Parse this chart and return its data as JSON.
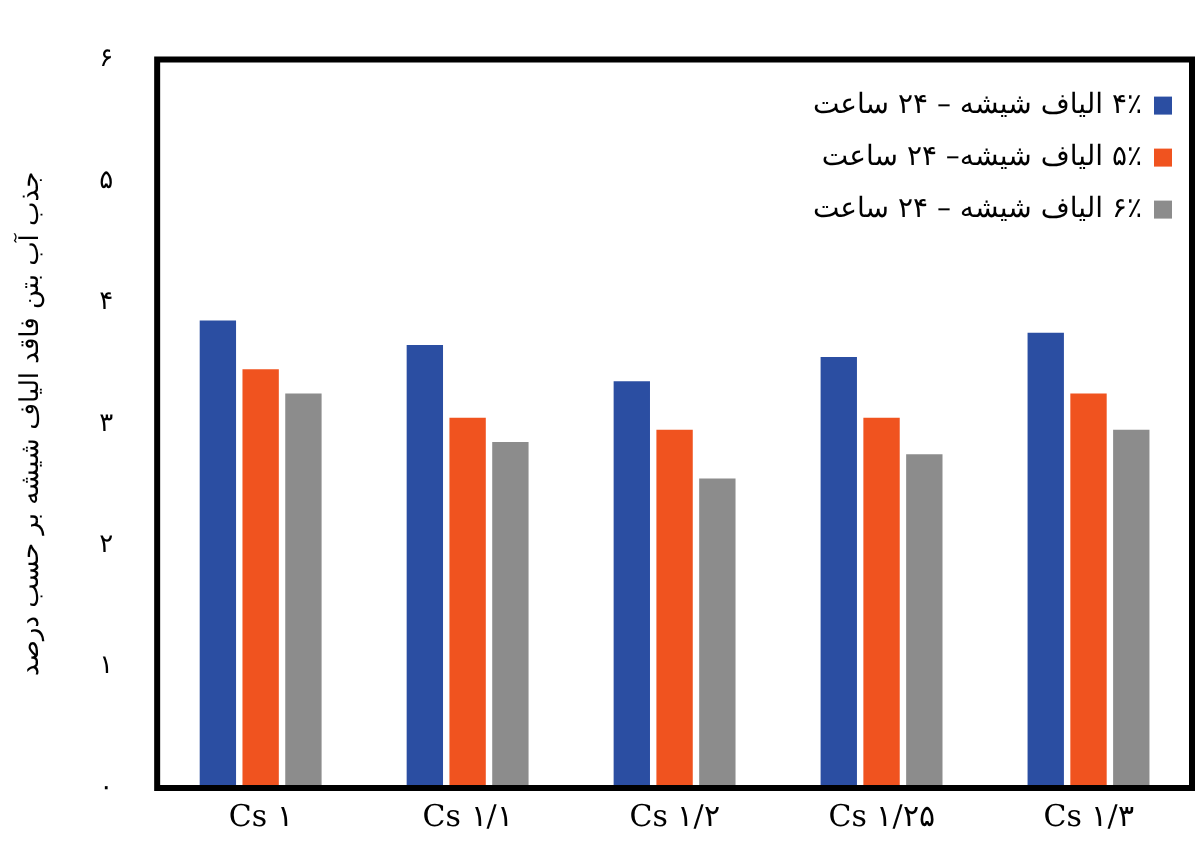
{
  "chart_data": {
    "type": "bar",
    "ylabel": "جذب آب بتن فاقد الیاف شیشه بر حسب درصد",
    "categories": [
      "Cs ۱",
      "Cs ۱/۱",
      "Cs ۱/۲",
      "Cs ۱/۲۵",
      "Cs ۱/۳"
    ],
    "series": [
      {
        "name": "۴٪ الیاف شیشه – ۲۴ ساعت",
        "color": "#2b4ea2",
        "values": [
          3.85,
          3.65,
          3.35,
          3.55,
          3.75
        ]
      },
      {
        "name": "۵٪ الیاف شیشه– ۲۴ ساعت",
        "color": "#f0531f",
        "values": [
          3.45,
          3.05,
          2.95,
          3.05,
          3.25
        ]
      },
      {
        "name": "۶٪ الیاف شیشه – ۲۴ ساعت",
        "color": "#8c8c8c",
        "values": [
          3.25,
          2.85,
          2.55,
          2.75,
          2.95
        ]
      }
    ],
    "ylim": [
      0,
      6
    ],
    "yticks": [
      {
        "value": 0,
        "label": "٠"
      },
      {
        "value": 1,
        "label": "۱"
      },
      {
        "value": 2,
        "label": "۲"
      },
      {
        "value": 3,
        "label": "۳"
      },
      {
        "value": 4,
        "label": "۴"
      },
      {
        "value": 5,
        "label": "۵"
      },
      {
        "value": 6,
        "label": "۶"
      }
    ],
    "grid": false,
    "legend": "top right"
  }
}
